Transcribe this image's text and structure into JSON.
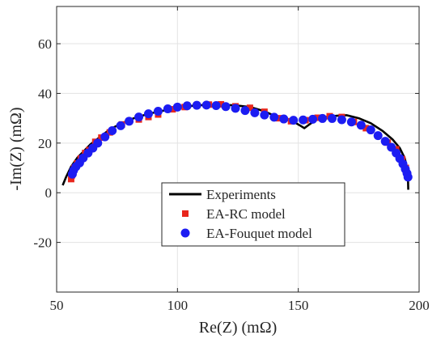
{
  "chart_data": {
    "type": "scatter",
    "title": "",
    "xlabel": "Re(Z) (mΩ)",
    "ylabel": "-Im(Z) (mΩ)",
    "xlim": [
      50,
      200
    ],
    "ylim": [
      -40,
      75
    ],
    "xticks": [
      50,
      100,
      150,
      200
    ],
    "yticks": [
      -20,
      0,
      20,
      40,
      60
    ],
    "xtick_labels": [
      "50",
      "100",
      "150",
      "200"
    ],
    "ytick_labels": [
      "-20",
      "0",
      "20",
      "40",
      "60"
    ],
    "grid": true,
    "legend_position": "bottom-center",
    "series": [
      {
        "name": "Experiments",
        "style": "line",
        "color": "#000000",
        "points": [
          [
            52.5,
            3
          ],
          [
            54,
            6.5
          ],
          [
            56,
            10.5
          ],
          [
            58.5,
            14
          ],
          [
            61,
            16.5
          ],
          [
            64,
            19.5
          ],
          [
            68,
            22.5
          ],
          [
            72,
            25.5
          ],
          [
            77,
            28
          ],
          [
            82,
            30
          ],
          [
            88,
            31.8
          ],
          [
            94,
            33
          ],
          [
            100,
            34.3
          ],
          [
            106,
            35
          ],
          [
            112,
            35.4
          ],
          [
            118,
            35.4
          ],
          [
            124,
            35.2
          ],
          [
            130,
            34.5
          ],
          [
            136,
            32.8
          ],
          [
            140,
            31
          ],
          [
            144,
            29.8
          ],
          [
            148,
            28.6
          ],
          [
            150.5,
            27.2
          ],
          [
            152.5,
            26
          ],
          [
            155,
            27.8
          ],
          [
            158,
            29.7
          ],
          [
            162,
            30.6
          ],
          [
            166,
            31
          ],
          [
            170,
            31.2
          ],
          [
            175,
            30
          ],
          [
            180,
            28
          ],
          [
            185,
            24.8
          ],
          [
            189,
            21.5
          ],
          [
            192,
            18
          ],
          [
            194,
            14
          ],
          [
            195.3,
            9
          ],
          [
            195.5,
            1.2
          ]
        ]
      },
      {
        "name": "EA-RC model",
        "style": "square",
        "color": "#e8261c",
        "points": [
          [
            56,
            5.5
          ],
          [
            56.3,
            7
          ],
          [
            56.7,
            8.5
          ],
          [
            57.3,
            10
          ],
          [
            58.5,
            11.8
          ],
          [
            60,
            13.8
          ],
          [
            61.8,
            16
          ],
          [
            63.5,
            17.2
          ],
          [
            66,
            20.5
          ],
          [
            68.5,
            22.2
          ],
          [
            72,
            24.3
          ],
          [
            77,
            27.5
          ],
          [
            80,
            28.8
          ],
          [
            84,
            29.5
          ],
          [
            88,
            30.5
          ],
          [
            92,
            31.5
          ],
          [
            98,
            33.6
          ],
          [
            103,
            34.5
          ],
          [
            108,
            35.2
          ],
          [
            113,
            35.5
          ],
          [
            118,
            35.6
          ],
          [
            124,
            34.8
          ],
          [
            130,
            34.2
          ],
          [
            136,
            32.6
          ],
          [
            142,
            30
          ],
          [
            147,
            28.8
          ],
          [
            153,
            29.2
          ],
          [
            158,
            30.2
          ],
          [
            163,
            30.8
          ],
          [
            168,
            30.5
          ],
          [
            173,
            28.5
          ],
          [
            178,
            26
          ],
          [
            183,
            23
          ],
          [
            187,
            20.2
          ],
          [
            190.5,
            17.5
          ],
          [
            193,
            13.5
          ],
          [
            194.5,
            10
          ],
          [
            195,
            7.5
          ]
        ]
      },
      {
        "name": "EA-Fouquet model",
        "style": "circle",
        "color": "#1c1cf2",
        "points": [
          [
            56.5,
            7.5
          ],
          [
            57,
            9
          ],
          [
            58,
            10.5
          ],
          [
            59.5,
            12
          ],
          [
            61,
            14
          ],
          [
            63,
            16
          ],
          [
            65,
            18
          ],
          [
            67,
            20
          ],
          [
            70,
            22.5
          ],
          [
            73,
            25
          ],
          [
            76.5,
            27
          ],
          [
            80,
            28.8
          ],
          [
            84,
            30.5
          ],
          [
            88,
            31.8
          ],
          [
            92,
            32.8
          ],
          [
            96,
            33.8
          ],
          [
            100,
            34.5
          ],
          [
            104,
            35
          ],
          [
            108,
            35.2
          ],
          [
            112,
            35.3
          ],
          [
            116,
            35.1
          ],
          [
            120,
            34.7
          ],
          [
            124,
            34
          ],
          [
            128,
            33.1
          ],
          [
            132,
            32.2
          ],
          [
            136,
            31.3
          ],
          [
            140,
            30.4
          ],
          [
            144,
            29.7
          ],
          [
            148,
            29.2
          ],
          [
            152,
            29.3
          ],
          [
            156,
            29.6
          ],
          [
            160,
            29.9
          ],
          [
            164,
            29.9
          ],
          [
            168,
            29.4
          ],
          [
            172,
            28.5
          ],
          [
            176,
            27.2
          ],
          [
            180,
            25.3
          ],
          [
            183,
            23
          ],
          [
            186,
            20.7
          ],
          [
            188.5,
            18.3
          ],
          [
            190.5,
            16
          ],
          [
            192,
            13.8
          ],
          [
            193.3,
            11.6
          ],
          [
            194.3,
            9.5
          ],
          [
            195,
            7.8
          ],
          [
            195.4,
            6.3
          ]
        ]
      }
    ]
  }
}
